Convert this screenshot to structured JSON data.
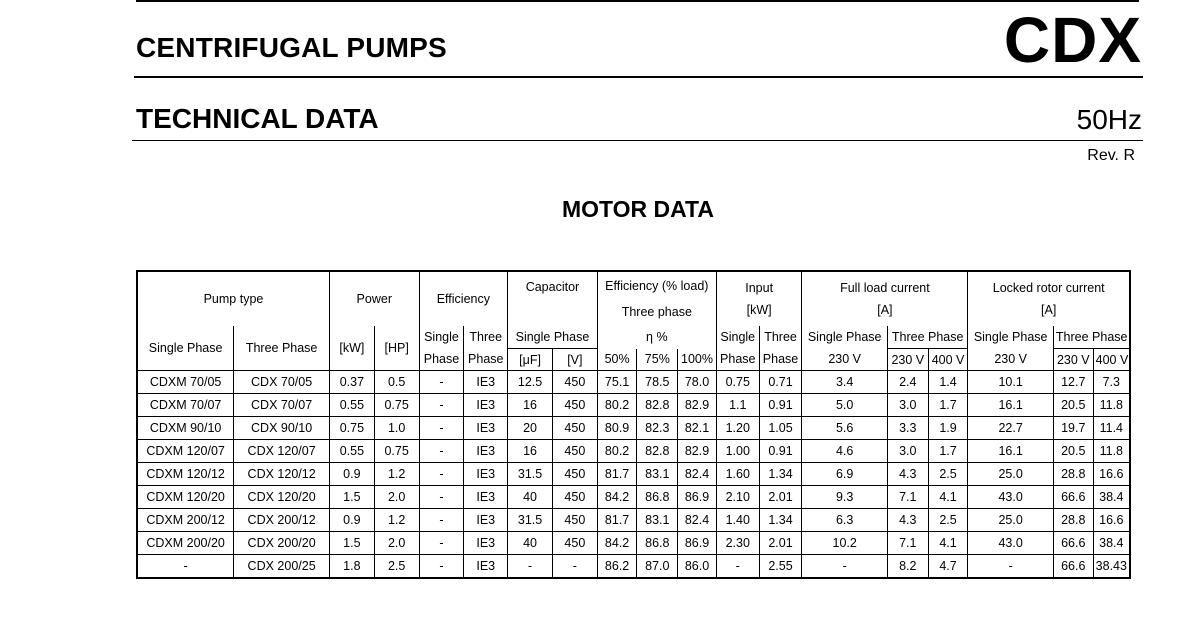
{
  "header": {
    "title": "CENTRIFUGAL PUMPS",
    "brand": "CDX",
    "subtitle": "TECHNICAL DATA",
    "frequency": "50Hz",
    "revision": "Rev. R"
  },
  "section_title": "MOTOR DATA",
  "table": {
    "group_headers": {
      "pump_type": "Pump type",
      "power": "Power",
      "efficiency": "Efficiency",
      "capacitor": "Capacitor",
      "efficiency_load": "Efficiency (% load)",
      "three_phase": "Three phase",
      "eta": "η %",
      "input": "Input",
      "input_unit": "[kW]",
      "full_load": "Full load current",
      "full_load_unit": "[A]",
      "locked_rotor": "Locked rotor current",
      "locked_rotor_unit": "[A]"
    },
    "sub_headers": {
      "single_phase": "Single Phase",
      "three_phase": "Three Phase",
      "kw": "[kW]",
      "hp": "[HP]",
      "single": "Single",
      "three": "Three",
      "phase": "Phase",
      "uf": "[μF]",
      "v": "[V]",
      "p50": "50%",
      "p75": "75%",
      "p100": "100%",
      "v230": "230 V",
      "v400": "400 V"
    },
    "rows": [
      [
        "CDXM 70/05",
        "CDX 70/05",
        "0.37",
        "0.5",
        "-",
        "IE3",
        "12.5",
        "450",
        "75.1",
        "78.5",
        "78.0",
        "0.75",
        "0.71",
        "3.4",
        "2.4",
        "1.4",
        "10.1",
        "12.7",
        "7.3"
      ],
      [
        "CDXM 70/07",
        "CDX 70/07",
        "0.55",
        "0.75",
        "-",
        "IE3",
        "16",
        "450",
        "80.2",
        "82.8",
        "82.9",
        "1.1",
        "0.91",
        "5.0",
        "3.0",
        "1.7",
        "16.1",
        "20.5",
        "11.8"
      ],
      [
        "CDXM 90/10",
        "CDX 90/10",
        "0.75",
        "1.0",
        "-",
        "IE3",
        "20",
        "450",
        "80.9",
        "82.3",
        "82.1",
        "1.20",
        "1.05",
        "5.6",
        "3.3",
        "1.9",
        "22.7",
        "19.7",
        "11.4"
      ],
      [
        "CDXM 120/07",
        "CDX 120/07",
        "0.55",
        "0.75",
        "-",
        "IE3",
        "16",
        "450",
        "80.2",
        "82.8",
        "82.9",
        "1.00",
        "0.91",
        "4.6",
        "3.0",
        "1.7",
        "16.1",
        "20.5",
        "11.8"
      ],
      [
        "CDXM 120/12",
        "CDX 120/12",
        "0.9",
        "1.2",
        "-",
        "IE3",
        "31.5",
        "450",
        "81.7",
        "83.1",
        "82.4",
        "1.60",
        "1.34",
        "6.9",
        "4.3",
        "2.5",
        "25.0",
        "28.8",
        "16.6"
      ],
      [
        "CDXM 120/20",
        "CDX 120/20",
        "1.5",
        "2.0",
        "-",
        "IE3",
        "40",
        "450",
        "84.2",
        "86.8",
        "86.9",
        "2.10",
        "2.01",
        "9.3",
        "7.1",
        "4.1",
        "43.0",
        "66.6",
        "38.4"
      ],
      [
        "CDXM 200/12",
        "CDX 200/12",
        "0.9",
        "1.2",
        "-",
        "IE3",
        "31.5",
        "450",
        "81.7",
        "83.1",
        "82.4",
        "1.40",
        "1.34",
        "6.3",
        "4.3",
        "2.5",
        "25.0",
        "28.8",
        "16.6"
      ],
      [
        "CDXM 200/20",
        "CDX 200/20",
        "1.5",
        "2.0",
        "-",
        "IE3",
        "40",
        "450",
        "84.2",
        "86.8",
        "86.9",
        "2.30",
        "2.01",
        "10.2",
        "7.1",
        "4.1",
        "43.0",
        "66.6",
        "38.4"
      ],
      [
        "-",
        "CDX 200/25",
        "1.8",
        "2.5",
        "-",
        "IE3",
        "-",
        "-",
        "86.2",
        "87.0",
        "86.0",
        "-",
        "2.55",
        "-",
        "8.2",
        "4.7",
        "-",
        "66.6",
        "38.43"
      ]
    ]
  }
}
